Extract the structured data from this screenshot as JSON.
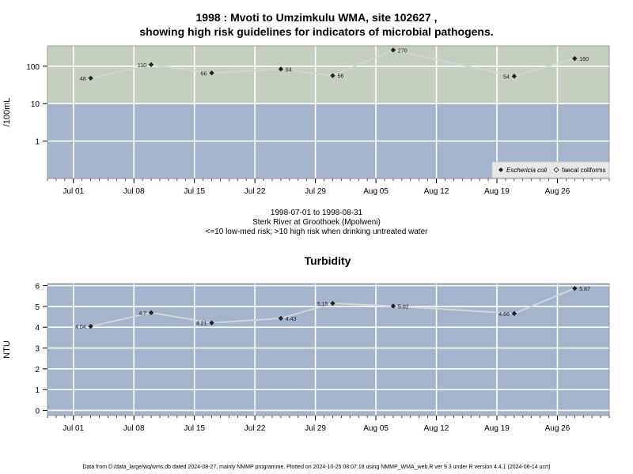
{
  "page": {
    "title_line1": "1998 : Mvoti to Umzimkulu WMA, site 102627 ,",
    "title_line2": "showing high risk guidelines for indicators of microbial pathogens.",
    "date_range": "1998-07-01 to 1998-08-31",
    "site_name": "Sterk River at Groothoek (Mpolweni)",
    "risk_note": "<=10 low-med risk; >10 high risk when drinking untreated water",
    "footer": "Data from D:/data_large/wq/wms.db dated 2024-08-27, mainly NMMP programme. Plotted on 2024-10-25 08:07:18 using NMMP_WMA_web.R ver 9.3 under R version 4.4.1 (2024-06-14 ucrt)"
  },
  "colors": {
    "high_risk_band": "#c4cfc0",
    "low_risk_band": "#a3b4cc",
    "grid": "#ffffff",
    "series_line": "#d4d4d4",
    "point": "#222222"
  },
  "chart_data": [
    {
      "type": "line",
      "title": "",
      "ylabel": "/100mL",
      "yscale": "log",
      "ylim": [
        0.1,
        350
      ],
      "ytick_labels": [
        "1",
        "10",
        "100"
      ],
      "xlim": [
        "1998-06-28",
        "1998-09-01"
      ],
      "xtick_labels": [
        "Jul 01",
        "Jul 08",
        "Jul 15",
        "Jul 22",
        "Jul 29",
        "Aug 05",
        "Aug 12",
        "Aug 19",
        "Aug 26"
      ],
      "threshold": 10,
      "legend": [
        "Eschericia coli",
        "faecal coliforms"
      ],
      "legend_position": "bottom-right",
      "series": [
        {
          "name": "Eschericia coli",
          "x": [
            "1998-07-03",
            "1998-07-10",
            "1998-07-17",
            "1998-07-25",
            "1998-07-31",
            "1998-08-07",
            "1998-08-21",
            "1998-08-28"
          ],
          "values": [
            48,
            110,
            66,
            84,
            56,
            270,
            54,
            160
          ],
          "labels": [
            "48",
            "110",
            "66",
            "84",
            "56",
            "270",
            "54",
            "160"
          ]
        }
      ]
    },
    {
      "type": "line",
      "title": "Turbidity",
      "ylabel": "NTU",
      "ylim": [
        -0.25,
        6.1
      ],
      "ytick_labels": [
        "0",
        "1",
        "2",
        "3",
        "4",
        "5",
        "6"
      ],
      "xlim": [
        "1998-06-28",
        "1998-09-01"
      ],
      "xtick_labels": [
        "Jul 01",
        "Jul 08",
        "Jul 15",
        "Jul 22",
        "Jul 29",
        "Aug 05",
        "Aug 12",
        "Aug 19",
        "Aug 26"
      ],
      "series": [
        {
          "x": [
            "1998-07-03",
            "1998-07-10",
            "1998-07-17",
            "1998-07-25",
            "1998-07-31",
            "1998-08-07",
            "1998-08-21",
            "1998-08-28"
          ],
          "values": [
            4.04,
            4.7,
            4.21,
            4.43,
            5.15,
            5.02,
            4.66,
            5.87
          ],
          "labels": [
            "4.04",
            "4.7",
            "4.21",
            "4.43",
            "5.15",
            "5.02",
            "4.66",
            "5.87"
          ]
        }
      ]
    }
  ]
}
